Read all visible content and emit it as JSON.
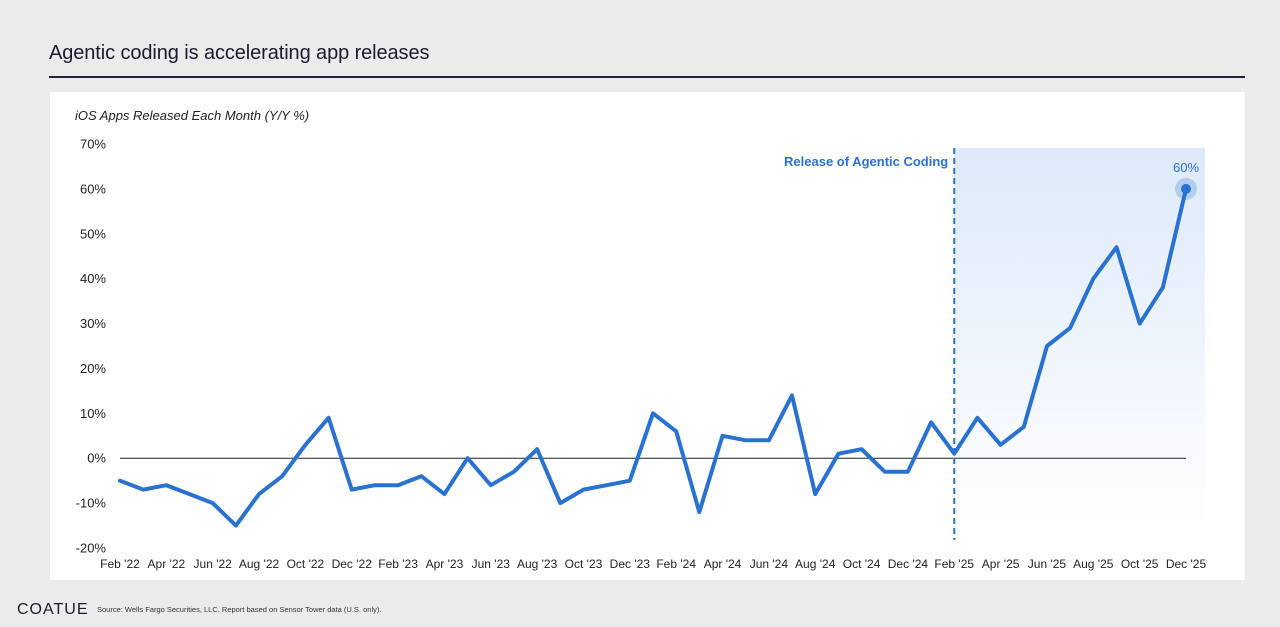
{
  "header": {
    "title": "Agentic coding is accelerating app releases"
  },
  "footer": {
    "brand": "COATUE",
    "source": "Source: Wells Fargo Securities, LLC. Report based on Sensor Tower data (U.S. only)."
  },
  "colors": {
    "line": "#2a72d0",
    "annotation": "#2a72d0",
    "shade_top": "#dde9fa",
    "shade_bottom": "#ffffff",
    "zero_line": "#222222",
    "axis_text": "#222222"
  },
  "chart_data": {
    "type": "line",
    "title": "iOS Apps Released Each Month (Y/Y %)",
    "xlabel": "",
    "ylabel": "",
    "ylim": [
      -20,
      70
    ],
    "yticks": [
      -20,
      -10,
      0,
      10,
      20,
      30,
      40,
      50,
      60,
      70
    ],
    "ytick_labels": [
      "-20%",
      "-10%",
      "0%",
      "10%",
      "20%",
      "30%",
      "40%",
      "50%",
      "60%",
      "70%"
    ],
    "grid": false,
    "x_tick_labels": [
      "Feb '22",
      "Apr '22",
      "Jun '22",
      "Aug '22",
      "Oct '22",
      "Dec '22",
      "Feb '23",
      "Apr '23",
      "Jun '23",
      "Aug '23",
      "Oct '23",
      "Dec '23",
      "Feb '24",
      "Apr '24",
      "Jun '24",
      "Aug '24",
      "Oct '24",
      "Dec '24",
      "Feb '25",
      "Apr '25",
      "Jun '25",
      "Aug '25",
      "Oct '25",
      "Dec '25"
    ],
    "series": [
      {
        "name": "iOS Apps Released Each Month (Y/Y %)",
        "values": [
          -5,
          -7,
          -6,
          -8,
          -10,
          -15,
          -8,
          -4,
          3,
          9,
          -7,
          -6,
          -6,
          -4,
          -8,
          0,
          -6,
          -3,
          2,
          -10,
          -7,
          -6,
          -5,
          10,
          6,
          -12,
          5,
          4,
          4,
          14,
          -8,
          1,
          2,
          -3,
          -3,
          8,
          1,
          9,
          3,
          7,
          25,
          29,
          40,
          47,
          30,
          38,
          60
        ]
      }
    ],
    "annotations": [
      {
        "type": "vline",
        "index": 36,
        "label": "Release of Agentic Coding"
      },
      {
        "type": "point",
        "index": 46,
        "label": "60%"
      }
    ]
  }
}
